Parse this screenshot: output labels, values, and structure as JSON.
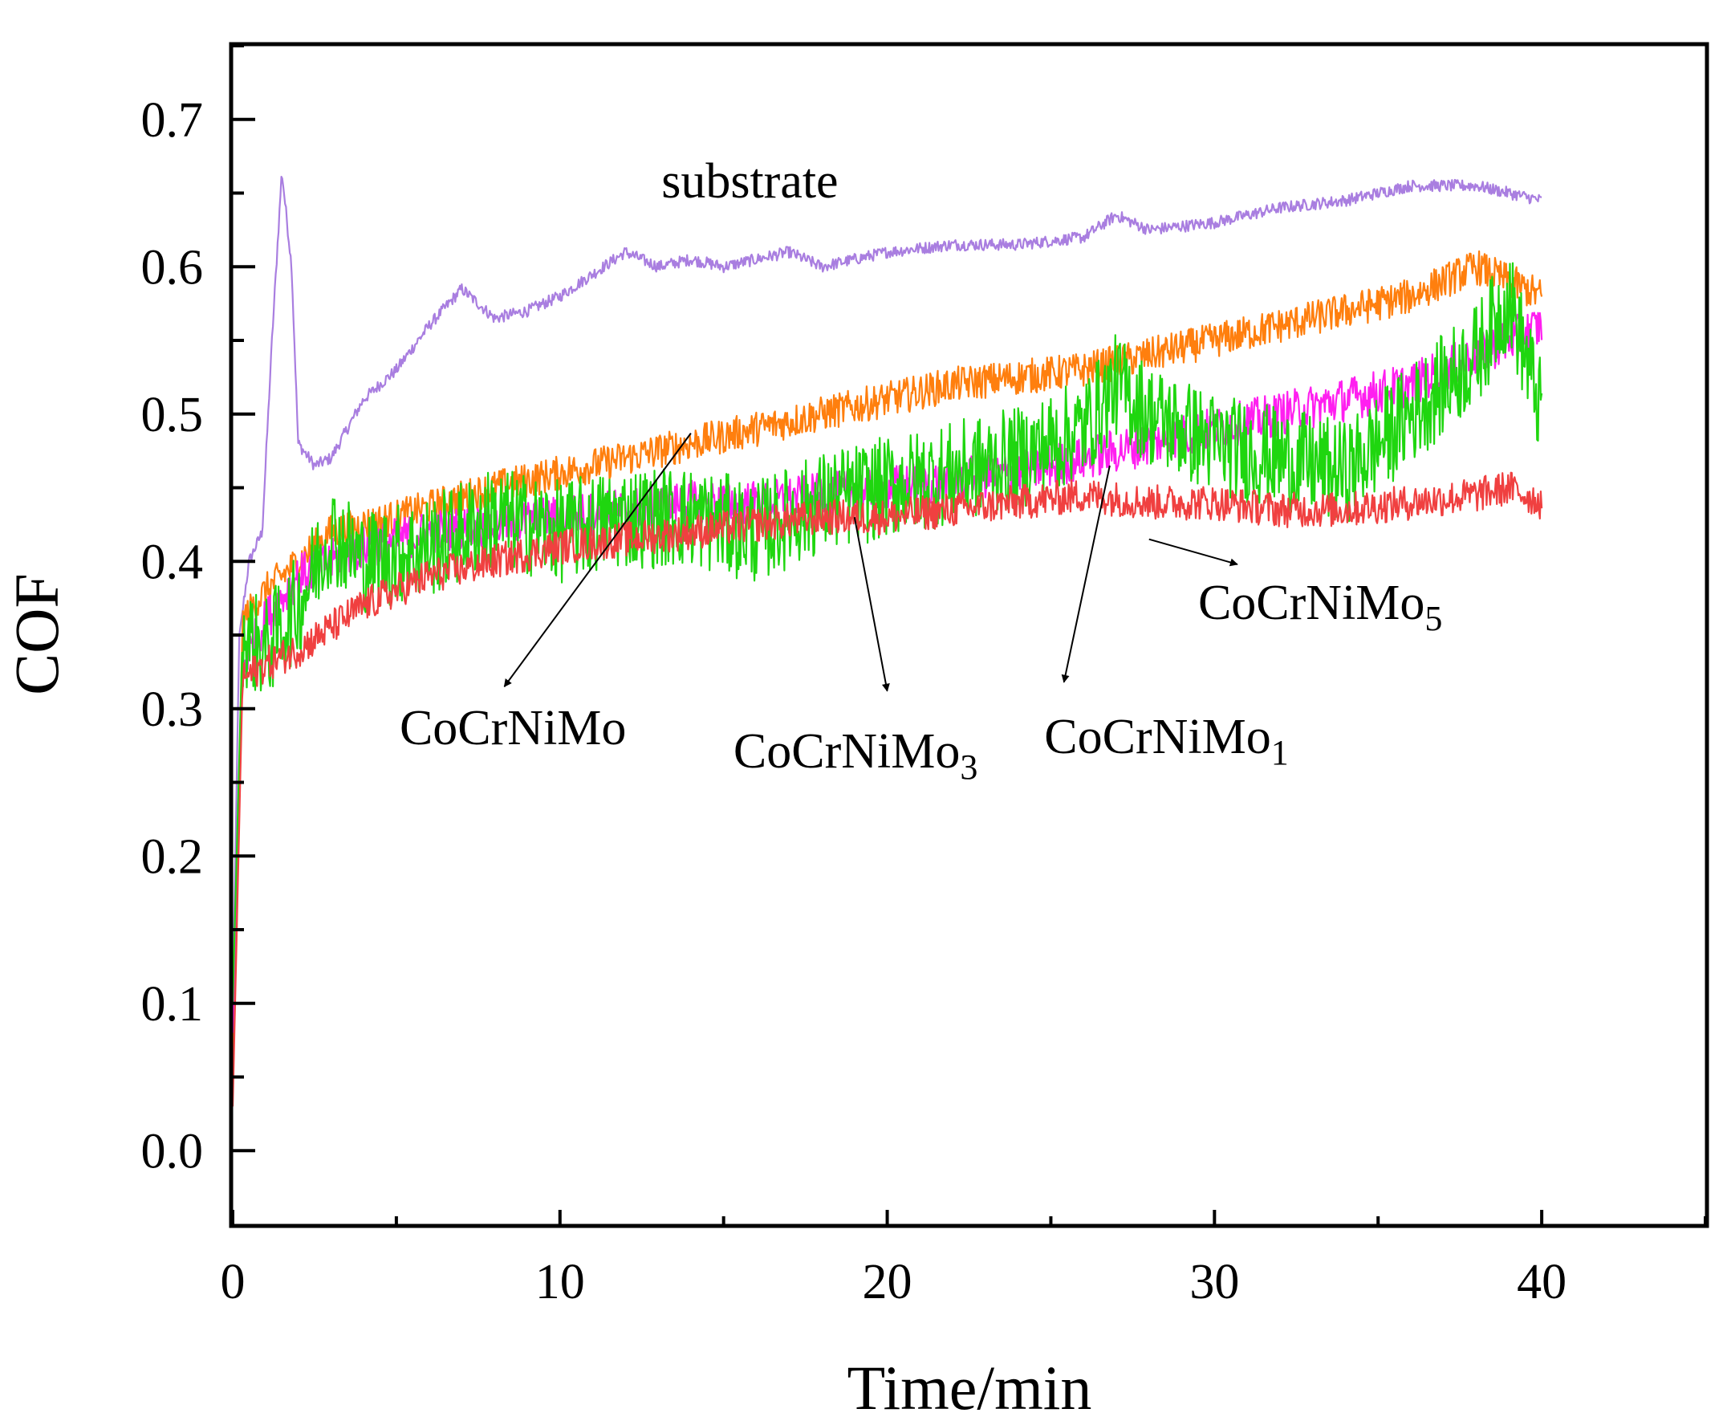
{
  "chart_data": {
    "type": "line",
    "title": "",
    "xlabel": "Time/min",
    "ylabel": "COF",
    "xlim": [
      0,
      45
    ],
    "ylim": [
      -0.05,
      0.75
    ],
    "xticks": [
      0,
      10,
      20,
      30,
      40
    ],
    "yticks": [
      0.0,
      0.1,
      0.2,
      0.3,
      0.4,
      0.5,
      0.6,
      0.7
    ],
    "xtick_labels": [
      "0",
      "10",
      "20",
      "30",
      "40"
    ],
    "ytick_labels": [
      "0.0",
      "0.1",
      "0.2",
      "0.3",
      "0.4",
      "0.5",
      "0.6",
      "0.7"
    ],
    "grid": false,
    "legend": "none",
    "series": [
      {
        "name": "substrate",
        "color": "#a97ee0",
        "noise": 0.004,
        "x": [
          0,
          0.2,
          0.5,
          0.9,
          1.2,
          1.5,
          1.8,
          2.0,
          2.5,
          3.0,
          4.0,
          5.0,
          6.0,
          7.0,
          8.0,
          9.0,
          10.0,
          11.0,
          12.0,
          13.0,
          14.0,
          15.0,
          16.0,
          17.0,
          18.0,
          20.0,
          22.0,
          24.0,
          26.0,
          27.0,
          28.0,
          30.0,
          32.0,
          34.0,
          36.0,
          38.0,
          40.0
        ],
        "y": [
          0.1,
          0.35,
          0.4,
          0.42,
          0.55,
          0.665,
          0.6,
          0.48,
          0.465,
          0.47,
          0.51,
          0.53,
          0.56,
          0.585,
          0.565,
          0.57,
          0.58,
          0.595,
          0.61,
          0.6,
          0.605,
          0.6,
          0.605,
          0.61,
          0.6,
          0.61,
          0.615,
          0.615,
          0.62,
          0.635,
          0.625,
          0.63,
          0.64,
          0.645,
          0.655,
          0.655,
          0.645
        ]
      },
      {
        "name": "CoCrNiMo",
        "color": "#ff7f0e",
        "noise": 0.012,
        "x": [
          0,
          0.3,
          1.0,
          2.0,
          3.0,
          5.0,
          8.0,
          10.0,
          12.0,
          14.0,
          16.0,
          18.0,
          20.0,
          22.0,
          24.0,
          26.0,
          28.0,
          30.0,
          32.0,
          34.0,
          36.0,
          38.0,
          39.0,
          40.0
        ],
        "y": [
          0.05,
          0.36,
          0.38,
          0.4,
          0.42,
          0.43,
          0.45,
          0.46,
          0.47,
          0.48,
          0.49,
          0.5,
          0.51,
          0.52,
          0.525,
          0.53,
          0.54,
          0.55,
          0.56,
          0.57,
          0.58,
          0.6,
          0.59,
          0.58
        ]
      },
      {
        "name": "CoCrNiMo1",
        "color": "#ff1ff0",
        "noise": 0.015,
        "x": [
          0,
          0.3,
          1.0,
          2.0,
          4.0,
          6.0,
          8.0,
          10.0,
          12.0,
          14.0,
          16.0,
          18.0,
          20.0,
          22.0,
          24.0,
          26.0,
          28.0,
          30.0,
          32.0,
          34.0,
          36.0,
          38.0,
          40.0
        ],
        "y": [
          0.08,
          0.33,
          0.36,
          0.39,
          0.41,
          0.42,
          0.425,
          0.43,
          0.435,
          0.44,
          0.44,
          0.445,
          0.45,
          0.455,
          0.46,
          0.47,
          0.48,
          0.49,
          0.5,
          0.51,
          0.52,
          0.54,
          0.56
        ]
      },
      {
        "name": "CoCrNiMo3",
        "color": "#1fd60f",
        "noise": 0.035,
        "x": [
          0,
          0.3,
          1.0,
          2.0,
          3.0,
          4.0,
          6.0,
          8.0,
          10.0,
          12.0,
          14.0,
          16.0,
          18.0,
          20.0,
          22.0,
          24.0,
          26.0,
          27.0,
          28.0,
          30.0,
          32.0,
          34.0,
          36.0,
          38.0,
          39.0,
          40.0
        ],
        "y": [
          0.1,
          0.35,
          0.34,
          0.37,
          0.42,
          0.4,
          0.41,
          0.43,
          0.42,
          0.43,
          0.43,
          0.42,
          0.44,
          0.45,
          0.46,
          0.47,
          0.49,
          0.52,
          0.5,
          0.48,
          0.47,
          0.46,
          0.5,
          0.54,
          0.58,
          0.5
        ]
      },
      {
        "name": "CoCrNiMo5",
        "color": "#f04040",
        "noise": 0.012,
        "x": [
          0,
          0.3,
          1.0,
          2.0,
          4.0,
          6.0,
          8.0,
          10.0,
          12.0,
          14.0,
          16.0,
          18.0,
          20.0,
          22.0,
          24.0,
          26.0,
          28.0,
          30.0,
          32.0,
          34.0,
          36.0,
          38.0,
          39.0,
          40.0
        ],
        "y": [
          0.03,
          0.32,
          0.33,
          0.34,
          0.37,
          0.39,
          0.4,
          0.41,
          0.415,
          0.42,
          0.425,
          0.43,
          0.43,
          0.435,
          0.44,
          0.445,
          0.44,
          0.44,
          0.435,
          0.435,
          0.44,
          0.445,
          0.45,
          0.44
        ]
      }
    ],
    "annotations": [
      {
        "id": "substrate",
        "base": "substrate",
        "sub": "",
        "text_x": 13.1,
        "text_y": 0.647,
        "arrow": null
      },
      {
        "id": "cocrnimo",
        "base": "CoCrNiMo",
        "sub": "",
        "text_x": 5.1,
        "text_y": 0.276,
        "arrow": {
          "from": [
            14.0,
            0.487
          ],
          "to": [
            8.3,
            0.315
          ]
        }
      },
      {
        "id": "cocrnimo3",
        "base": "CoCrNiMo",
        "sub": "3",
        "text_x": 15.3,
        "text_y": 0.26,
        "arrow": {
          "from": [
            19.0,
            0.43
          ],
          "to": [
            20.0,
            0.312
          ]
        }
      },
      {
        "id": "cocrnimo1",
        "base": "CoCrNiMo",
        "sub": "1",
        "text_x": 24.8,
        "text_y": 0.27,
        "arrow": {
          "from": [
            26.8,
            0.465
          ],
          "to": [
            25.4,
            0.318
          ]
        }
      },
      {
        "id": "cocrnimo5",
        "base": "CoCrNiMo",
        "sub": "5",
        "text_x": 29.5,
        "text_y": 0.361,
        "arrow": {
          "from": [
            28.0,
            0.415
          ],
          "to": [
            30.7,
            0.398
          ]
        }
      }
    ]
  }
}
